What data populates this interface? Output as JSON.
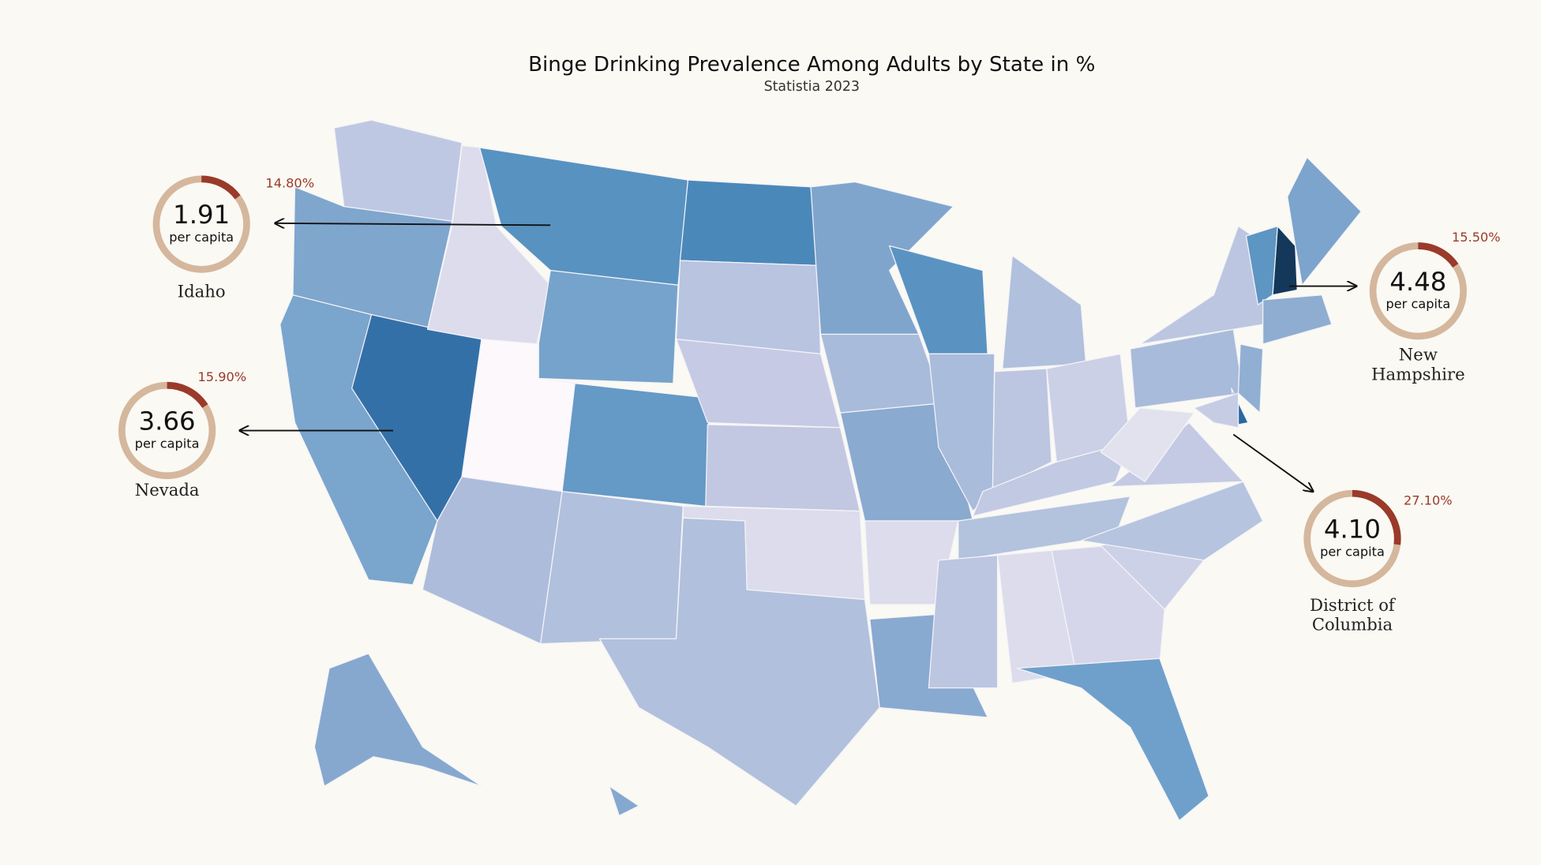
{
  "header": {
    "title": "Binge Drinking Prevalence Among Adults by State in %",
    "subtitle": "Statistia 2023"
  },
  "callouts": [
    {
      "name_lines": [
        "Idaho"
      ],
      "per_capita": "1.91",
      "per_capita_unit": "per capita",
      "percent": 14.8,
      "percent_label": "14.80%"
    },
    {
      "name_lines": [
        "Nevada"
      ],
      "per_capita": "3.66",
      "per_capita_unit": "per capita",
      "percent": 15.9,
      "percent_label": "15.90%"
    },
    {
      "name_lines": [
        "New",
        "Hampshire"
      ],
      "per_capita": "4.48",
      "per_capita_unit": "per capita",
      "percent": 15.5,
      "percent_label": "15.50%"
    },
    {
      "name_lines": [
        "District of",
        "Columbia"
      ],
      "per_capita": "4.10",
      "per_capita_unit": "per capita",
      "percent": 27.1,
      "percent_label": "27.10%"
    }
  ]
}
